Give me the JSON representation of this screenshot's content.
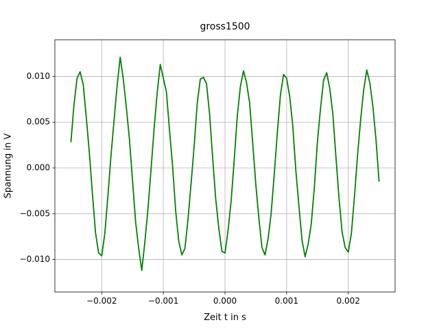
{
  "chart_data": {
    "type": "line",
    "title": "gross1500",
    "x_label": "Zeit t in s",
    "y_label": "Spannung in V",
    "grid": true,
    "xlim": [
      -0.00276,
      0.00276
    ],
    "ylim": [
      -0.01355,
      0.014
    ],
    "xticks": [
      {
        "value": -0.002,
        "label": "−0.002"
      },
      {
        "value": -0.001,
        "label": "−0.001"
      },
      {
        "value": 0,
        "label": "0.000"
      },
      {
        "value": 0.001,
        "label": "0.001"
      },
      {
        "value": 0.002,
        "label": "0.002"
      }
    ],
    "yticks": [
      {
        "value": -0.01,
        "label": "−0.010"
      },
      {
        "value": -0.005,
        "label": "−0.005"
      },
      {
        "value": 0,
        "label": "0.000"
      },
      {
        "value": 0.005,
        "label": "0.005"
      },
      {
        "value": 0.01,
        "label": "0.010"
      }
    ],
    "x": [
      -0.0025,
      -0.00245,
      -0.0024,
      -0.00235,
      -0.0023,
      -0.00225,
      -0.0022,
      -0.00215,
      -0.0021,
      -0.00205,
      -0.002,
      -0.00195,
      -0.0019,
      -0.00185,
      -0.0018,
      -0.00175,
      -0.0017,
      -0.00165,
      -0.0016,
      -0.00155,
      -0.0015,
      -0.00145,
      -0.0014,
      -0.00135,
      -0.0013,
      -0.00125,
      -0.0012,
      -0.00115,
      -0.0011,
      -0.00105,
      -0.001,
      -0.00095,
      -0.0009,
      -0.00085,
      -0.0008,
      -0.00075,
      -0.0007,
      -0.00065,
      -0.0006,
      -0.00055,
      -0.0005,
      -0.00045,
      -0.0004,
      -0.00035,
      -0.0003,
      -0.00025,
      -0.0002,
      -0.00015,
      -0.0001,
      -5e-05,
      0,
      5e-05,
      0.0001,
      0.00015,
      0.0002,
      0.00025,
      0.0003,
      0.00035,
      0.0004,
      0.00045,
      0.0005,
      0.00055,
      0.0006,
      0.00065,
      0.0007,
      0.00075,
      0.0008,
      0.00085,
      0.0009,
      0.00095,
      0.001,
      0.00105,
      0.0011,
      0.00115,
      0.0012,
      0.00125,
      0.0013,
      0.00135,
      0.0014,
      0.00145,
      0.0015,
      0.00155,
      0.0016,
      0.00165,
      0.0017,
      0.00175,
      0.0018,
      0.00185,
      0.0019,
      0.00195,
      0.002,
      0.00205,
      0.0021,
      0.00215,
      0.0022,
      0.00225,
      0.0023,
      0.00235,
      0.0024,
      0.00245,
      0.0025
    ],
    "series": [
      {
        "color": "#008000",
        "values": [
          0.0028,
          0.0069,
          0.0098,
          0.0105,
          0.0091,
          0.0055,
          0.0016,
          -0.0029,
          -0.0071,
          -0.0093,
          -0.0096,
          -0.0072,
          -0.0031,
          0.0013,
          0.0052,
          0.009,
          0.0121,
          0.0097,
          0.0066,
          0.0031,
          -0.0014,
          -0.0059,
          -0.0088,
          -0.0112,
          -0.0081,
          -0.0045,
          -0.0002,
          0.0043,
          0.0082,
          0.0113,
          0.0098,
          0.0083,
          0.0041,
          0.0002,
          -0.0047,
          -0.008,
          -0.0095,
          -0.0088,
          -0.0056,
          -0.0017,
          0.0024,
          0.0071,
          0.0097,
          0.0099,
          0.0092,
          0.0059,
          0.0011,
          -0.0034,
          -0.0066,
          -0.0091,
          -0.0093,
          -0.0068,
          -0.0036,
          0.0009,
          0.0057,
          0.0089,
          0.0106,
          0.0093,
          0.0071,
          0.0027,
          -0.0018,
          -0.0055,
          -0.0087,
          -0.0095,
          -0.0077,
          -0.0049,
          -0.0006,
          0.0039,
          0.008,
          0.0102,
          0.0098,
          0.0078,
          0.0046,
          -0.0003,
          -0.0042,
          -0.0079,
          -0.0097,
          -0.0083,
          -0.0061,
          -0.0021,
          0.0029,
          0.0065,
          0.0096,
          0.0104,
          0.0087,
          0.0059,
          0.0012,
          -0.0033,
          -0.007,
          -0.0087,
          -0.0092,
          -0.0072,
          -0.0032,
          0.0013,
          0.0052,
          0.0085,
          0.0107,
          0.0093,
          0.0067,
          0.0031,
          -0.0015
        ]
      }
    ]
  }
}
